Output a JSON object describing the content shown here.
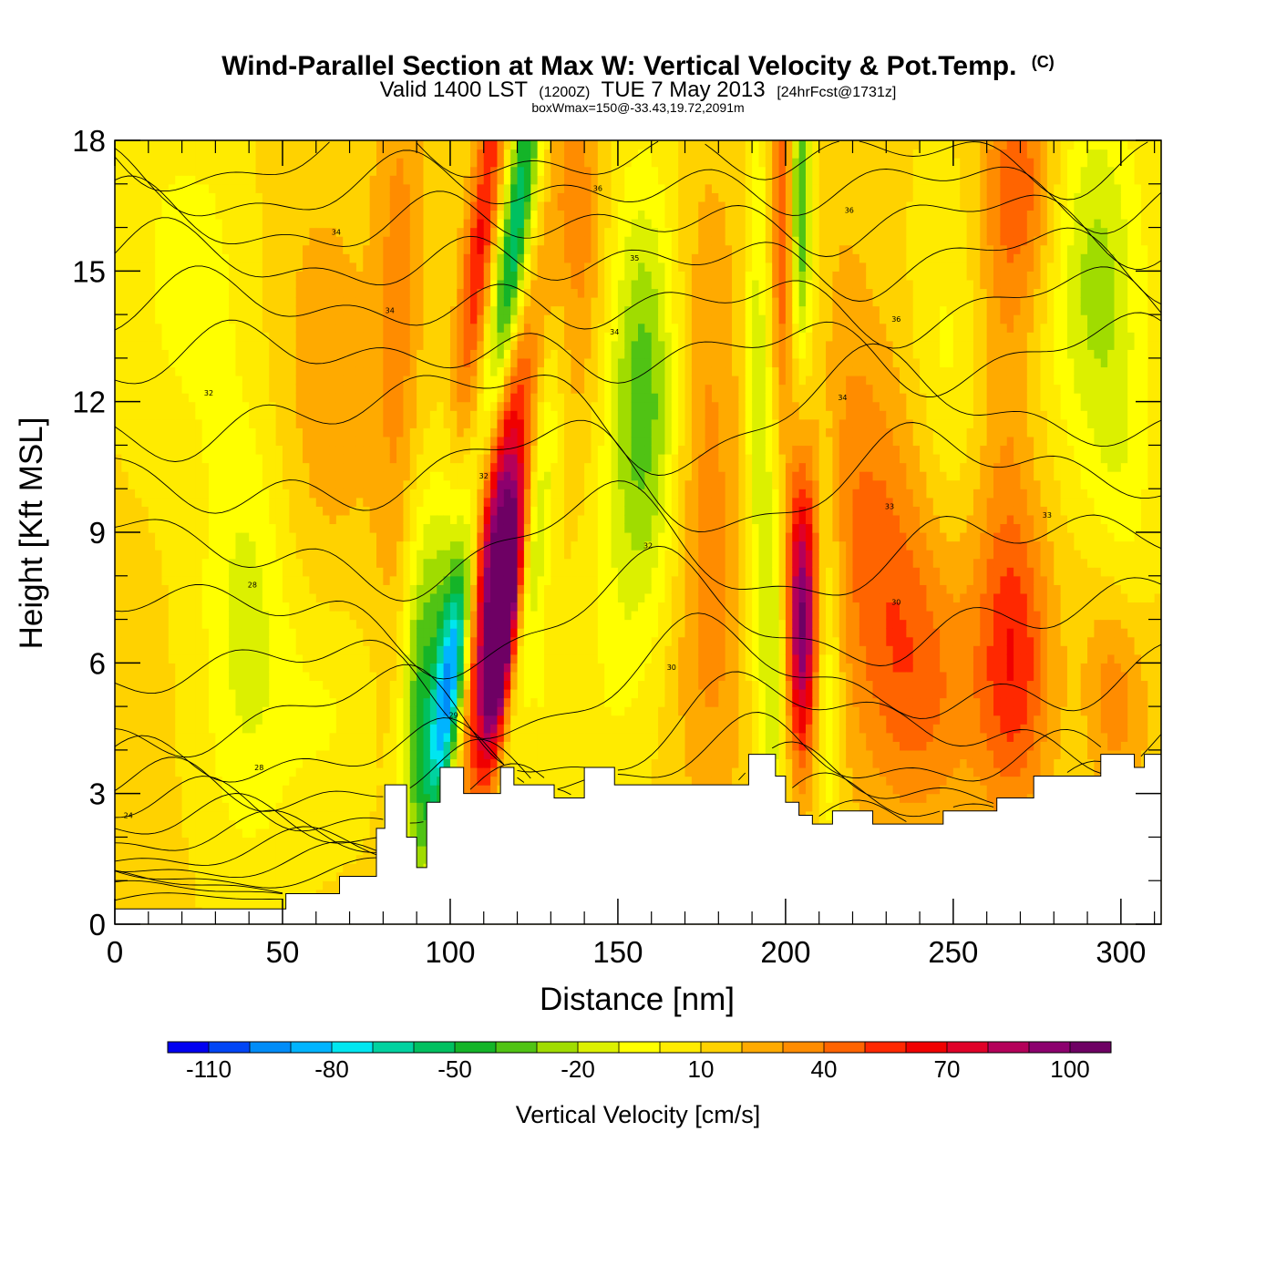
{
  "title": {
    "main": "Wind-Parallel Section at Max W: Vertical Velocity & Pot.Temp.",
    "copyright": "(C)",
    "valid_prefix": "Valid 1400 LST",
    "valid_utc": "(1200Z)",
    "valid_date": "TUE 7 May 2013",
    "forecast": "[24hrFcst@1731z]",
    "subtitle": "boxWmax=150@-33.43,19.72,2091m"
  },
  "colors": {
    "background": "#ffffff",
    "axis": "#000000",
    "contour": "#000000",
    "terrain": "#ffffff"
  },
  "chart_data": {
    "type": "heatmap",
    "description_of_fields": "filled contours of vertical velocity with potential temperature line contours",
    "xlabel": "Distance [nm]",
    "ylabel": "Height [Kft MSL]",
    "xlim": [
      0,
      312
    ],
    "ylim": [
      0,
      18
    ],
    "x_ticks": [
      0,
      50,
      100,
      150,
      200,
      250,
      300
    ],
    "y_ticks": [
      0,
      3,
      6,
      9,
      12,
      15,
      18
    ],
    "grid": false,
    "colorbar": {
      "label": "Vertical Velocity [cm/s]",
      "levels": [
        -120,
        -110,
        -100,
        -90,
        -80,
        -70,
        -60,
        -50,
        -40,
        -30,
        -20,
        -10,
        0,
        10,
        20,
        30,
        40,
        50,
        60,
        70,
        80,
        90,
        100,
        110
      ],
      "tick_labels": [
        "-110",
        "-80",
        "-50",
        "-20",
        "10",
        "40",
        "70",
        "100"
      ],
      "tick_values": [
        -110,
        -80,
        -50,
        -20,
        10,
        40,
        70,
        100
      ],
      "colors": [
        "#0000f0",
        "#0045f5",
        "#008cf8",
        "#00b4ff",
        "#00e6f0",
        "#00d2a0",
        "#00c060",
        "#14b428",
        "#50c314",
        "#a0dc00",
        "#dcf000",
        "#ffff00",
        "#ffeb00",
        "#ffd200",
        "#ffaa00",
        "#ff8c00",
        "#ff6400",
        "#ff2800",
        "#f00000",
        "#e00028",
        "#b4005a",
        "#8c006e",
        "#6e0064"
      ]
    },
    "terrain_kft": [
      [
        0,
        0.35
      ],
      [
        50,
        0.35
      ],
      [
        51,
        0.7
      ],
      [
        66,
        0.7
      ],
      [
        67,
        1.1
      ],
      [
        77,
        1.1
      ],
      [
        78,
        2.2
      ],
      [
        80,
        2.2
      ],
      [
        80.5,
        3.2
      ],
      [
        86,
        3.2
      ],
      [
        87,
        2.0
      ],
      [
        89,
        2.0
      ],
      [
        90,
        1.3
      ],
      [
        92,
        1.3
      ],
      [
        93,
        2.8
      ],
      [
        96,
        2.8
      ],
      [
        97,
        3.6
      ],
      [
        103,
        3.6
      ],
      [
        104,
        3.0
      ],
      [
        114,
        3.0
      ],
      [
        115,
        3.6
      ],
      [
        118,
        3.6
      ],
      [
        119,
        3.2
      ],
      [
        130,
        3.2
      ],
      [
        131,
        2.9
      ],
      [
        139,
        2.9
      ],
      [
        140,
        3.6
      ],
      [
        148,
        3.6
      ],
      [
        149,
        3.2
      ],
      [
        188,
        3.2
      ],
      [
        189,
        3.9
      ],
      [
        196,
        3.9
      ],
      [
        197,
        3.4
      ],
      [
        199,
        3.4
      ],
      [
        200,
        2.8
      ],
      [
        203,
        2.8
      ],
      [
        204,
        2.5
      ],
      [
        207,
        2.5
      ],
      [
        208,
        2.3
      ],
      [
        213,
        2.3
      ],
      [
        214,
        2.6
      ],
      [
        225,
        2.6
      ],
      [
        226,
        2.3
      ],
      [
        246,
        2.3
      ],
      [
        247,
        2.6
      ],
      [
        262,
        2.6
      ],
      [
        263,
        2.9
      ],
      [
        273,
        2.9
      ],
      [
        274,
        3.4
      ],
      [
        293,
        3.4
      ],
      [
        294,
        3.9
      ],
      [
        303,
        3.9
      ],
      [
        304,
        3.6
      ],
      [
        306,
        3.6
      ],
      [
        307,
        3.9
      ],
      [
        312,
        3.9
      ]
    ],
    "velocity_features": [
      {
        "x": 0,
        "y": 6,
        "sx": 10000,
        "sy": 10000,
        "value": 12
      },
      {
        "x": 40,
        "y": 7,
        "sx": 10,
        "sy": 3.8,
        "value": -28
      },
      {
        "x": 22,
        "y": 15,
        "sx": 14,
        "sy": 3,
        "value": -16
      },
      {
        "x": 60,
        "y": 12,
        "sx": 14,
        "sy": 4,
        "value": 14
      },
      {
        "x": 64,
        "y": 5,
        "sx": 10,
        "sy": 2,
        "value": -14
      },
      {
        "x": 85,
        "y": 14,
        "sx": 5,
        "sy": 5,
        "value": 22
      },
      {
        "x": 90,
        "y": 5,
        "sx": 3.5,
        "sy": 4,
        "value": -30
      },
      {
        "x": 100,
        "y": 5.5,
        "sx": 3.5,
        "sy": 2.2,
        "value": -115,
        "slant": 1.5
      },
      {
        "x": 97,
        "y": 8.5,
        "sx": 4,
        "sy": 3.5,
        "value": -40,
        "slant": 1.5
      },
      {
        "x": 108,
        "y": 15,
        "sx": 3.5,
        "sy": 4,
        "value": 55,
        "slant": 1.5
      },
      {
        "x": 113,
        "y": 9,
        "sx": 4.5,
        "sy": 3.5,
        "value": 90,
        "slant": 1.5
      },
      {
        "x": 116,
        "y": 6.8,
        "sx": 3,
        "sy": 2.2,
        "value": 115,
        "slant": 1.5
      },
      {
        "x": 119,
        "y": 15.5,
        "sx": 3.5,
        "sy": 3.5,
        "value": -80,
        "slant": 1.5
      },
      {
        "x": 125,
        "y": 9,
        "sx": 3,
        "sy": 3,
        "value": -30,
        "slant": 1.5
      },
      {
        "x": 128,
        "y": 5,
        "sx": 5,
        "sy": 3,
        "value": -12
      },
      {
        "x": 138,
        "y": 16,
        "sx": 6,
        "sy": 3,
        "value": 25
      },
      {
        "x": 158,
        "y": 12,
        "sx": 8,
        "sy": 3.5,
        "value": -50
      },
      {
        "x": 148,
        "y": 6,
        "sx": 6,
        "sy": 3,
        "value": -10
      },
      {
        "x": 175,
        "y": 12,
        "sx": 8,
        "sy": 4,
        "value": 20
      },
      {
        "x": 178,
        "y": 6,
        "sx": 8,
        "sy": 3,
        "value": 15
      },
      {
        "x": 192,
        "y": 12,
        "sx": 3,
        "sy": 5,
        "value": -30
      },
      {
        "x": 197,
        "y": 6,
        "sx": 3,
        "sy": 3,
        "value": -30
      },
      {
        "x": 200,
        "y": 16,
        "sx": 3,
        "sy": 3,
        "value": 50
      },
      {
        "x": 204,
        "y": 16.5,
        "sx": 2.5,
        "sy": 2.5,
        "value": -70
      },
      {
        "x": 205,
        "y": 7,
        "sx": 3.5,
        "sy": 2.3,
        "value": 90
      },
      {
        "x": 212,
        "y": 6,
        "sx": 3,
        "sy": 3,
        "value": -30
      },
      {
        "x": 218,
        "y": 12,
        "sx": 6,
        "sy": 4,
        "value": 10
      },
      {
        "x": 240,
        "y": 5.5,
        "sx": 12,
        "sy": 2.5,
        "value": 30
      },
      {
        "x": 268,
        "y": 6,
        "sx": 8,
        "sy": 2.5,
        "value": 45
      },
      {
        "x": 265,
        "y": 12,
        "sx": 6,
        "sy": 3,
        "value": 15
      },
      {
        "x": 248,
        "y": 13,
        "sx": 8,
        "sy": 3,
        "value": -14
      },
      {
        "x": 270,
        "y": 17,
        "sx": 8,
        "sy": 2,
        "value": 35
      },
      {
        "x": 292,
        "y": 15,
        "sx": 10,
        "sy": 3,
        "value": -35
      },
      {
        "x": 300,
        "y": 10,
        "sx": 7,
        "sy": 2.5,
        "value": -15
      },
      {
        "x": 295,
        "y": 6.5,
        "sx": 5,
        "sy": 2,
        "value": 10
      },
      {
        "x": 228,
        "y": 9,
        "sx": 10,
        "sy": 3,
        "value": 25
      },
      {
        "x": 300,
        "y": 5,
        "sx": 6,
        "sy": 1.5,
        "value": 20
      }
    ],
    "theta_contours": {
      "levels": [
        24,
        25,
        26,
        27,
        28,
        29,
        30,
        31,
        32,
        33,
        34,
        35,
        36
      ],
      "labels": [
        {
          "text": "24",
          "x": 4,
          "y": 2.5
        },
        {
          "text": "28",
          "x": 43,
          "y": 3.6
        },
        {
          "text": "28",
          "x": 41,
          "y": 7.8
        },
        {
          "text": "29",
          "x": 101,
          "y": 4.8
        },
        {
          "text": "30",
          "x": 166,
          "y": 5.9
        },
        {
          "text": "30",
          "x": 233,
          "y": 7.4
        },
        {
          "text": "32",
          "x": 28,
          "y": 12.2
        },
        {
          "text": "32",
          "x": 110,
          "y": 10.3
        },
        {
          "text": "32",
          "x": 159,
          "y": 8.7
        },
        {
          "text": "33",
          "x": 231,
          "y": 9.6
        },
        {
          "text": "33",
          "x": 278,
          "y": 9.4
        },
        {
          "text": "34",
          "x": 82,
          "y": 14.1
        },
        {
          "text": "34",
          "x": 149,
          "y": 13.6
        },
        {
          "text": "34",
          "x": 217,
          "y": 12.1
        },
        {
          "text": "34",
          "x": 66,
          "y": 15.9
        },
        {
          "text": "36",
          "x": 233,
          "y": 13.9
        },
        {
          "text": "35",
          "x": 155,
          "y": 15.3
        },
        {
          "text": "36",
          "x": 219,
          "y": 16.4
        },
        {
          "text": "36",
          "x": 144,
          "y": 16.9
        }
      ]
    }
  }
}
